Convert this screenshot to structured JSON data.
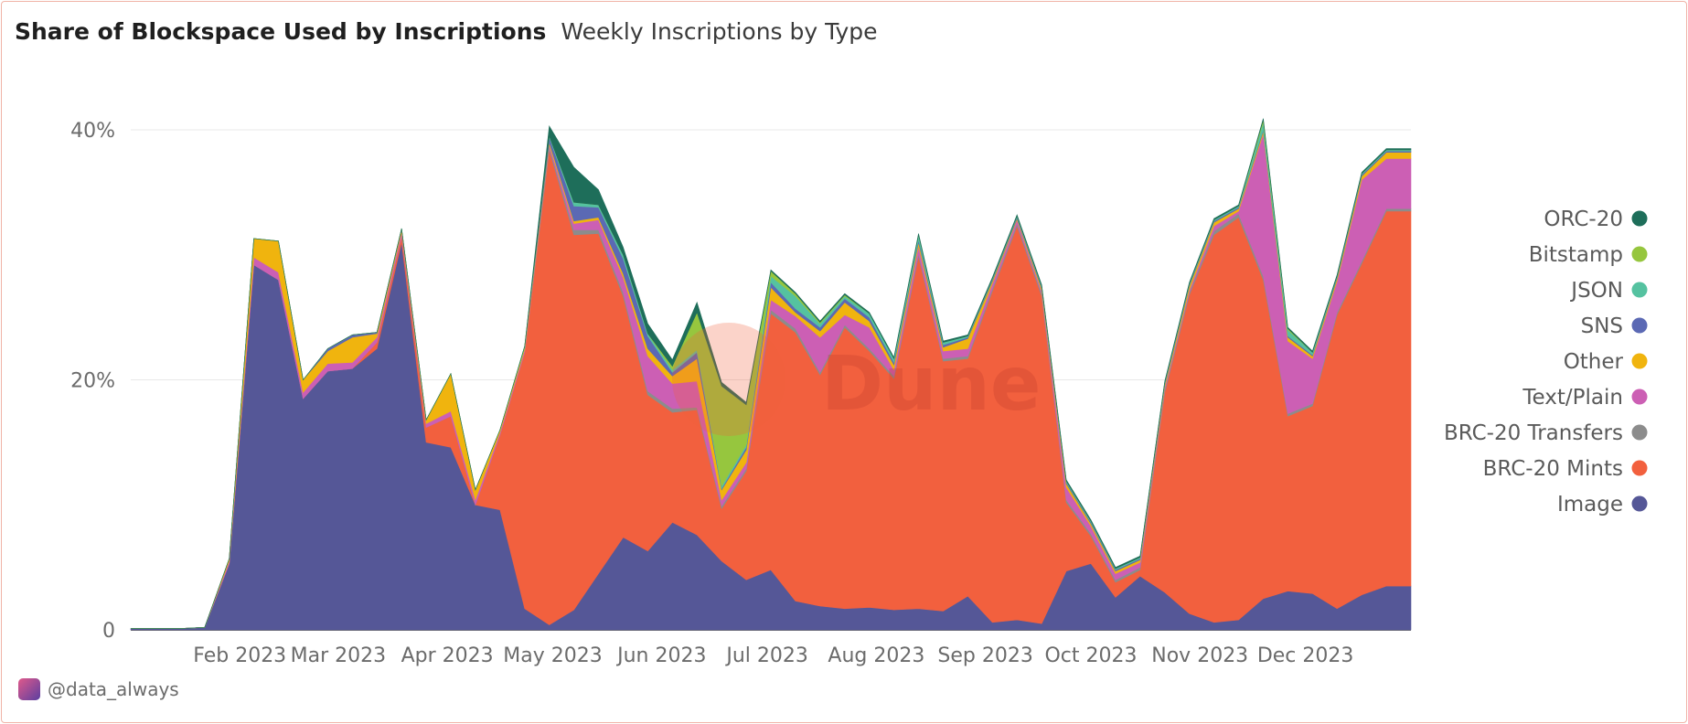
{
  "header": {
    "title": "Share of Blockspace Used by Inscriptions",
    "subtitle": "Weekly Inscriptions by Type"
  },
  "watermark": "Dune",
  "footer": {
    "author": "@data_always"
  },
  "chart_data": {
    "type": "area",
    "stacked": true,
    "ylim": [
      0,
      0.45
    ],
    "yticks": [
      {
        "value": 0,
        "label": "0"
      },
      {
        "value": 0.2,
        "label": "20%"
      },
      {
        "value": 0.4,
        "label": "40%"
      }
    ],
    "xlim": [
      "2023-01-01",
      "2023-12-31"
    ],
    "xticks": [
      {
        "date": "2023-02-01",
        "label": "Feb 2023"
      },
      {
        "date": "2023-03-01",
        "label": "Mar 2023"
      },
      {
        "date": "2023-04-01",
        "label": "Apr 2023"
      },
      {
        "date": "2023-05-01",
        "label": "May 2023"
      },
      {
        "date": "2023-06-01",
        "label": "Jun 2023"
      },
      {
        "date": "2023-07-01",
        "label": "Jul 2023"
      },
      {
        "date": "2023-08-01",
        "label": "Aug 2023"
      },
      {
        "date": "2023-09-01",
        "label": "Sep 2023"
      },
      {
        "date": "2023-10-01",
        "label": "Oct 2023"
      },
      {
        "date": "2023-11-01",
        "label": "Nov 2023"
      },
      {
        "date": "2023-12-01",
        "label": "Dec 2023"
      }
    ],
    "grid": true,
    "legend_position": "right",
    "x": [
      "2023-01-01",
      "2023-01-08",
      "2023-01-15",
      "2023-01-22",
      "2023-01-29",
      "2023-02-05",
      "2023-02-12",
      "2023-02-19",
      "2023-02-26",
      "2023-03-05",
      "2023-03-12",
      "2023-03-19",
      "2023-03-26",
      "2023-04-02",
      "2023-04-09",
      "2023-04-16",
      "2023-04-23",
      "2023-04-30",
      "2023-05-07",
      "2023-05-14",
      "2023-05-21",
      "2023-05-28",
      "2023-06-04",
      "2023-06-11",
      "2023-06-18",
      "2023-06-25",
      "2023-07-02",
      "2023-07-09",
      "2023-07-16",
      "2023-07-23",
      "2023-07-30",
      "2023-08-06",
      "2023-08-13",
      "2023-08-20",
      "2023-08-27",
      "2023-09-03",
      "2023-09-10",
      "2023-09-17",
      "2023-09-24",
      "2023-10-01",
      "2023-10-08",
      "2023-10-15",
      "2023-10-22",
      "2023-10-29",
      "2023-11-05",
      "2023-11-12",
      "2023-11-19",
      "2023-11-26",
      "2023-12-03",
      "2023-12-10",
      "2023-12-17",
      "2023-12-24",
      "2023-12-31"
    ],
    "series": [
      {
        "name": "Image",
        "color": "#555797",
        "values": [
          0.001,
          0.001,
          0.001,
          0.002,
          0.053,
          0.292,
          0.28,
          0.185,
          0.207,
          0.209,
          0.225,
          0.31,
          0.15,
          0.146,
          0.1,
          0.096,
          0.017,
          0.004,
          0.016,
          0.045,
          0.074,
          0.063,
          0.086,
          0.076,
          0.055,
          0.04,
          0.048,
          0.023,
          0.019,
          0.017,
          0.018,
          0.016,
          0.017,
          0.015,
          0.027,
          0.006,
          0.008,
          0.005,
          0.047,
          0.053,
          0.026,
          0.043,
          0.03,
          0.013,
          0.006,
          0.008,
          0.025,
          0.031,
          0.029,
          0.017,
          0.028,
          0.035,
          0.035
        ]
      },
      {
        "name": "BRC-20 Mints",
        "color": "#f2603e",
        "values": [
          0,
          0,
          0,
          0,
          0,
          0,
          0,
          0,
          0,
          0,
          0.005,
          0.005,
          0.012,
          0.025,
          0,
          0.06,
          0.205,
          0.38,
          0.3,
          0.272,
          0.193,
          0.125,
          0.088,
          0.1,
          0.042,
          0.087,
          0.205,
          0.215,
          0.185,
          0.225,
          0.205,
          0.185,
          0.282,
          0.2,
          0.19,
          0.265,
          0.315,
          0.262,
          0.055,
          0.022,
          0.012,
          0.005,
          0.16,
          0.255,
          0.31,
          0.322,
          0.255,
          0.14,
          0.15,
          0.235,
          0.265,
          0.3,
          0.3
        ]
      },
      {
        "name": "BRC-20 Transfers",
        "color": "#8c8c8c",
        "values": [
          0,
          0,
          0,
          0,
          0,
          0,
          0,
          0,
          0,
          0,
          0,
          0,
          0,
          0,
          0,
          0,
          0,
          0.002,
          0.004,
          0.003,
          0.003,
          0.003,
          0.003,
          0.002,
          0.002,
          0.002,
          0.003,
          0.003,
          0.002,
          0.002,
          0.002,
          0.002,
          0.002,
          0.002,
          0.002,
          0.002,
          0.002,
          0.002,
          0.002,
          0.002,
          0.002,
          0.002,
          0.002,
          0.002,
          0.003,
          0.003,
          0.003,
          0.002,
          0.002,
          0.002,
          0.002,
          0.002,
          0.002
        ]
      },
      {
        "name": "Text/Plain",
        "color": "#cc5fb4",
        "values": [
          0,
          0,
          0,
          0,
          0.002,
          0.006,
          0.006,
          0.005,
          0.006,
          0.005,
          0.004,
          0.003,
          0.003,
          0.004,
          0.004,
          0.002,
          0.002,
          0.002,
          0.005,
          0.008,
          0.012,
          0.028,
          0.02,
          0.021,
          0.005,
          0.005,
          0.008,
          0.01,
          0.028,
          0.008,
          0.017,
          0.005,
          0.006,
          0.006,
          0.006,
          0.004,
          0.003,
          0.002,
          0.01,
          0.006,
          0.005,
          0.004,
          0.002,
          0.002,
          0.004,
          0.002,
          0.114,
          0.058,
          0.036,
          0.025,
          0.065,
          0.04,
          0.04
        ]
      },
      {
        "name": "Other",
        "color": "#f0b40e",
        "values": [
          0,
          0,
          0,
          0,
          0.002,
          0.015,
          0.025,
          0.01,
          0.01,
          0.02,
          0.003,
          0.002,
          0.003,
          0.03,
          0.008,
          0.002,
          0.002,
          0.002,
          0.002,
          0.002,
          0.003,
          0.006,
          0.006,
          0.018,
          0.008,
          0.01,
          0.01,
          0.003,
          0.005,
          0.01,
          0.005,
          0.004,
          0.003,
          0.003,
          0.008,
          0.002,
          0.001,
          0.002,
          0.003,
          0.002,
          0.002,
          0.002,
          0.002,
          0.003,
          0.003,
          0.002,
          0.002,
          0.003,
          0.002,
          0.002,
          0.003,
          0.005,
          0.005
        ]
      },
      {
        "name": "SNS",
        "color": "#5b69b4",
        "values": [
          0,
          0,
          0,
          0,
          0,
          0,
          0,
          0,
          0.002,
          0.002,
          0.001,
          0.001,
          0,
          0,
          0,
          0,
          0,
          0.004,
          0.012,
          0.008,
          0.012,
          0.01,
          0.003,
          0.005,
          0.001,
          0.002,
          0.004,
          0.003,
          0.003,
          0.003,
          0.003,
          0.002,
          0.002,
          0.002,
          0.001,
          0.001,
          0.001,
          0.001,
          0.001,
          0.001,
          0.001,
          0.001,
          0.001,
          0.001,
          0.001,
          0.001,
          0.001,
          0.001,
          0.001,
          0.001,
          0.001,
          0.001,
          0.001
        ]
      },
      {
        "name": "JSON",
        "color": "#55c2a0",
        "values": [
          0,
          0,
          0,
          0,
          0,
          0,
          0,
          0,
          0,
          0,
          0,
          0,
          0,
          0,
          0,
          0,
          0.001,
          0.001,
          0.003,
          0.002,
          0.003,
          0.002,
          0.002,
          0.002,
          0.002,
          0.002,
          0.005,
          0.01,
          0.003,
          0.002,
          0.003,
          0.003,
          0.004,
          0.002,
          0.001,
          0.001,
          0.001,
          0.001,
          0.001,
          0.001,
          0.001,
          0.001,
          0.001,
          0.001,
          0.001,
          0.001,
          0.006,
          0.005,
          0.002,
          0.001,
          0.001,
          0.001,
          0.001
        ]
      },
      {
        "name": "Bitstamp",
        "color": "#96c63e",
        "values": [
          0,
          0,
          0,
          0,
          0,
          0,
          0,
          0,
          0,
          0,
          0,
          0,
          0,
          0,
          0,
          0,
          0,
          0,
          0,
          0,
          0,
          0,
          0.003,
          0.03,
          0.08,
          0.032,
          0.004,
          0.002,
          0.001,
          0.001,
          0,
          0,
          0,
          0,
          0,
          0,
          0,
          0,
          0,
          0,
          0,
          0,
          0,
          0,
          0,
          0,
          0.002,
          0.001,
          0,
          0,
          0,
          0,
          0
        ]
      },
      {
        "name": "ORC-20",
        "color": "#1e6e5a",
        "values": [
          0,
          0,
          0,
          0,
          0,
          0,
          0,
          0,
          0,
          0,
          0,
          0,
          0,
          0,
          0,
          0,
          0,
          0.008,
          0.028,
          0.012,
          0.006,
          0.008,
          0.005,
          0.008,
          0.003,
          0.002,
          0.001,
          0.001,
          0.001,
          0.001,
          0.001,
          0.001,
          0.001,
          0.001,
          0.001,
          0.001,
          0.001,
          0.001,
          0.001,
          0.001,
          0.001,
          0.001,
          0.001,
          0.001,
          0.001,
          0.001,
          0.001,
          0.001,
          0.001,
          0.001,
          0.001,
          0.001,
          0.001
        ]
      }
    ]
  }
}
